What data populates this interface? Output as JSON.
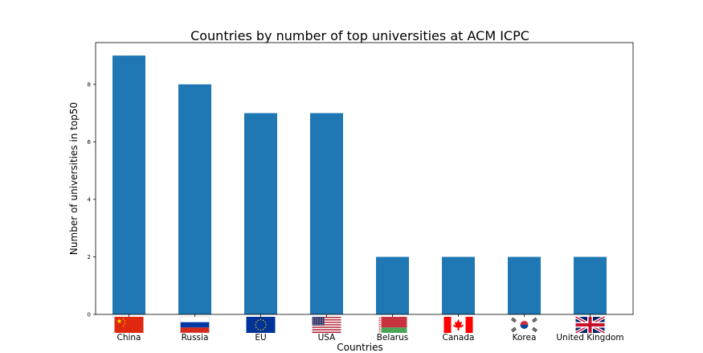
{
  "chart_data": {
    "type": "bar",
    "title": "Countries by number of top universities at ACM ICPC",
    "xlabel": "Countries",
    "ylabel": "Number of universities in top50",
    "categories": [
      "China",
      "Russia",
      "EU",
      "USA",
      "Belarus",
      "Canada",
      "Korea",
      "United Kingdom"
    ],
    "values": [
      9,
      8,
      7,
      7,
      2,
      2,
      2,
      2
    ],
    "ylim": [
      0,
      9.45
    ],
    "yticks": [
      0,
      2,
      4,
      6,
      8
    ],
    "ytick_labels": [
      "0",
      "2",
      "4",
      "6",
      "8"
    ],
    "grid": false,
    "legend": "none",
    "bar_color": "#1f77b4",
    "flag_icons": [
      "china-flag-icon",
      "russia-flag-icon",
      "eu-flag-icon",
      "usa-flag-icon",
      "belarus-flag-icon",
      "canada-flag-icon",
      "korea-flag-icon",
      "uk-flag-icon"
    ]
  }
}
